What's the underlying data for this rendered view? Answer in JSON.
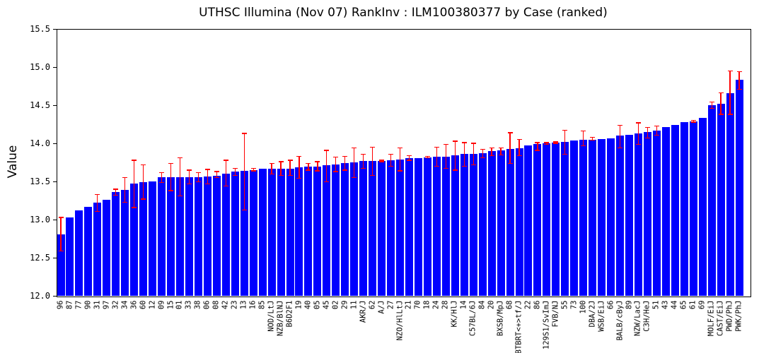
{
  "colors": {
    "bar": "#0000ff",
    "error": "#ff0000",
    "axis": "#000000",
    "background": "#ffffff",
    "text": "#000000"
  },
  "chart_data": {
    "type": "bar",
    "title": "UTHSC Illumina (Nov 07) RankInv : ILM100380377 by Case (ranked)",
    "xlabel": "",
    "ylabel": "Value",
    "ylim": [
      12.0,
      15.5
    ],
    "yticks": [
      "15.5",
      "15.0",
      "14.5",
      "14.0",
      "13.5",
      "13.0",
      "12.5",
      "12.0"
    ],
    "grid": false,
    "legend": null,
    "bar_color": "#0000ff",
    "error_bar_color": "#ff0000",
    "categories": [
      "96",
      "87",
      "77",
      "90",
      "31",
      "97",
      "32",
      "34",
      "36",
      "60",
      "12",
      "09",
      "15",
      "01",
      "33",
      "38",
      "06",
      "08",
      "42",
      "23",
      "13",
      "16",
      "85",
      "NOD/LtJ",
      "NZB/BlNJ",
      "B6D2F1",
      "19",
      "40",
      "05",
      "45",
      "02",
      "29",
      "11",
      "AKR/J",
      "62",
      "A/J",
      "27",
      "NZO/HlLtJ",
      "21",
      "70",
      "18",
      "24",
      "28",
      "KK/HlJ",
      "14",
      "C57BL/6J",
      "84",
      "20",
      "BXSB/MpJ",
      "68",
      "BTBRT<+>tf/J",
      "22",
      "86",
      "129S1/SvImJ",
      "FVB/NJ",
      "55",
      "73",
      "100",
      "DBA/2J",
      "WSB/EiJ",
      "66",
      "BALB/cByJ",
      "89",
      "NZW/LacJ",
      "C3H/HeJ",
      "51",
      "43",
      "44",
      "65",
      "61",
      "69",
      "MOLF/EiJ",
      "CAST/EiJ",
      "PWD/PhJ",
      "PWK/PhJ"
    ],
    "values": [
      12.81,
      13.03,
      13.12,
      13.17,
      13.22,
      13.26,
      13.36,
      13.39,
      13.47,
      13.49,
      13.5,
      13.56,
      13.56,
      13.56,
      13.56,
      13.56,
      13.57,
      13.58,
      13.6,
      13.63,
      13.64,
      13.65,
      13.67,
      13.67,
      13.67,
      13.67,
      13.69,
      13.7,
      13.7,
      13.71,
      13.72,
      13.74,
      13.75,
      13.77,
      13.77,
      13.77,
      13.78,
      13.79,
      13.81,
      13.81,
      13.82,
      13.83,
      13.83,
      13.84,
      13.86,
      13.86,
      13.87,
      13.9,
      13.91,
      13.93,
      13.94,
      13.97,
      13.99,
      14.0,
      14.01,
      14.02,
      14.04,
      14.05,
      14.05,
      14.06,
      14.07,
      14.1,
      14.11,
      14.13,
      14.15,
      14.17,
      14.21,
      14.24,
      14.28,
      14.29,
      14.33,
      14.5,
      14.52,
      14.66,
      14.83
    ],
    "error_low": [
      12.59,
      null,
      null,
      null,
      13.11,
      null,
      13.32,
      13.23,
      13.16,
      13.27,
      null,
      13.49,
      13.38,
      13.31,
      13.47,
      13.5,
      13.47,
      13.55,
      13.44,
      13.58,
      13.13,
      13.64,
      null,
      13.6,
      13.58,
      13.58,
      13.54,
      13.65,
      13.64,
      13.5,
      13.63,
      13.65,
      13.55,
      13.67,
      13.58,
      13.76,
      13.7,
      13.64,
      13.78,
      null,
      13.81,
      13.7,
      13.67,
      13.65,
      13.7,
      13.72,
      13.81,
      13.84,
      13.85,
      13.74,
      13.84,
      null,
      13.91,
      13.99,
      14.0,
      13.86,
      null,
      13.97,
      14.04,
      null,
      null,
      13.94,
      null,
      13.99,
      14.07,
      14.11,
      null,
      null,
      null,
      14.28,
      null,
      14.46,
      14.38,
      14.38,
      14.71
    ],
    "error_high": [
      13.03,
      null,
      null,
      null,
      13.33,
      null,
      13.4,
      13.55,
      13.78,
      13.72,
      null,
      13.62,
      13.74,
      13.81,
      13.65,
      13.62,
      13.66,
      13.63,
      13.78,
      13.67,
      14.13,
      13.67,
      null,
      13.74,
      13.76,
      13.78,
      13.83,
      13.74,
      13.76,
      13.91,
      13.82,
      13.83,
      13.94,
      13.86,
      13.95,
      13.78,
      13.86,
      13.94,
      13.84,
      null,
      13.83,
      13.95,
      13.99,
      14.03,
      14.01,
      14.0,
      13.92,
      13.94,
      13.94,
      14.14,
      14.05,
      null,
      14.01,
      14.01,
      14.02,
      14.17,
      null,
      14.16,
      14.08,
      null,
      null,
      14.24,
      null,
      14.27,
      14.21,
      14.23,
      null,
      null,
      null,
      14.3,
      null,
      14.54,
      14.66,
      14.95,
      14.94
    ]
  }
}
